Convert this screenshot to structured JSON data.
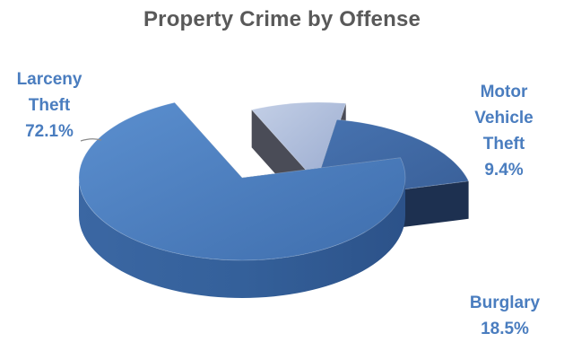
{
  "chart_data": {
    "type": "pie",
    "title": "Property Crime by Offense",
    "slices": [
      {
        "name": "Larceny Theft",
        "label_lines": [
          "Larceny",
          "Theft"
        ],
        "value": 72.1,
        "value_label": "72.1%",
        "color": "#4a7ebb",
        "exploded": false
      },
      {
        "name": "Motor Vehicle Theft",
        "label_lines": [
          "Motor",
          "Vehicle",
          "Theft"
        ],
        "value": 9.4,
        "value_label": "9.4%",
        "color": "#a9b9d9",
        "exploded": true
      },
      {
        "name": "Burglary",
        "label_lines": [
          "Burglary"
        ],
        "value": 18.5,
        "value_label": "18.5%",
        "color": "#3f6aa6",
        "exploded": true
      }
    ],
    "style": "3d-exploded",
    "legend": "none"
  }
}
